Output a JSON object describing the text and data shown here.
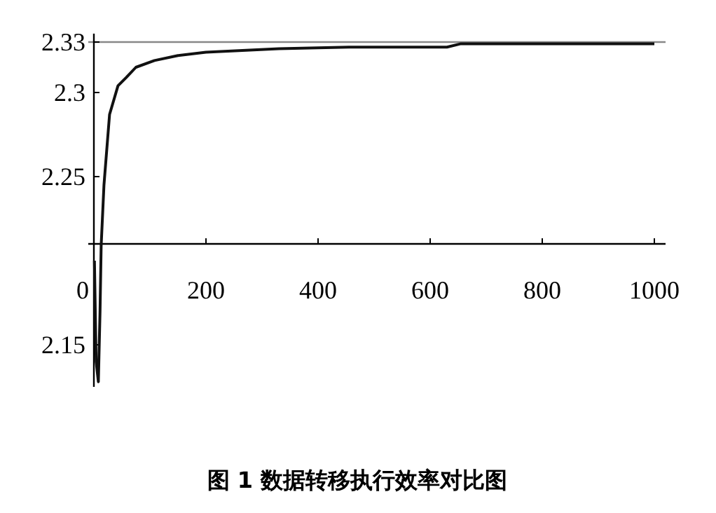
{
  "chart_data": {
    "type": "line",
    "annotations": [
      "图 1   数据转移执行效率对比图"
    ],
    "series": [
      {
        "color": "#111111",
        "x": [
          1,
          4,
          8,
          11,
          13,
          18,
          28,
          43,
          58,
          75,
          108,
          150,
          200,
          330,
          455,
          630,
          655,
          1000
        ],
        "values": [
          2.2,
          2.14,
          2.128,
          2.17,
          2.209,
          2.245,
          2.287,
          2.304,
          2.309,
          2.315,
          2.319,
          2.322,
          2.324,
          2.326,
          2.327,
          2.327,
          2.329,
          2.329
        ]
      }
    ],
    "xlim": [
      -10,
      1020
    ],
    "ylim": [
      2.125,
      2.335
    ],
    "xticks": [
      0,
      200,
      400,
      600,
      800,
      1000
    ],
    "yticks": [
      2.15,
      2.25,
      2.3,
      2.33
    ],
    "ref_lines": [
      {
        "axis": "y",
        "value": 2.33,
        "color": "#888888"
      }
    ],
    "grid": false,
    "marker": "none",
    "line_style": "solid"
  }
}
